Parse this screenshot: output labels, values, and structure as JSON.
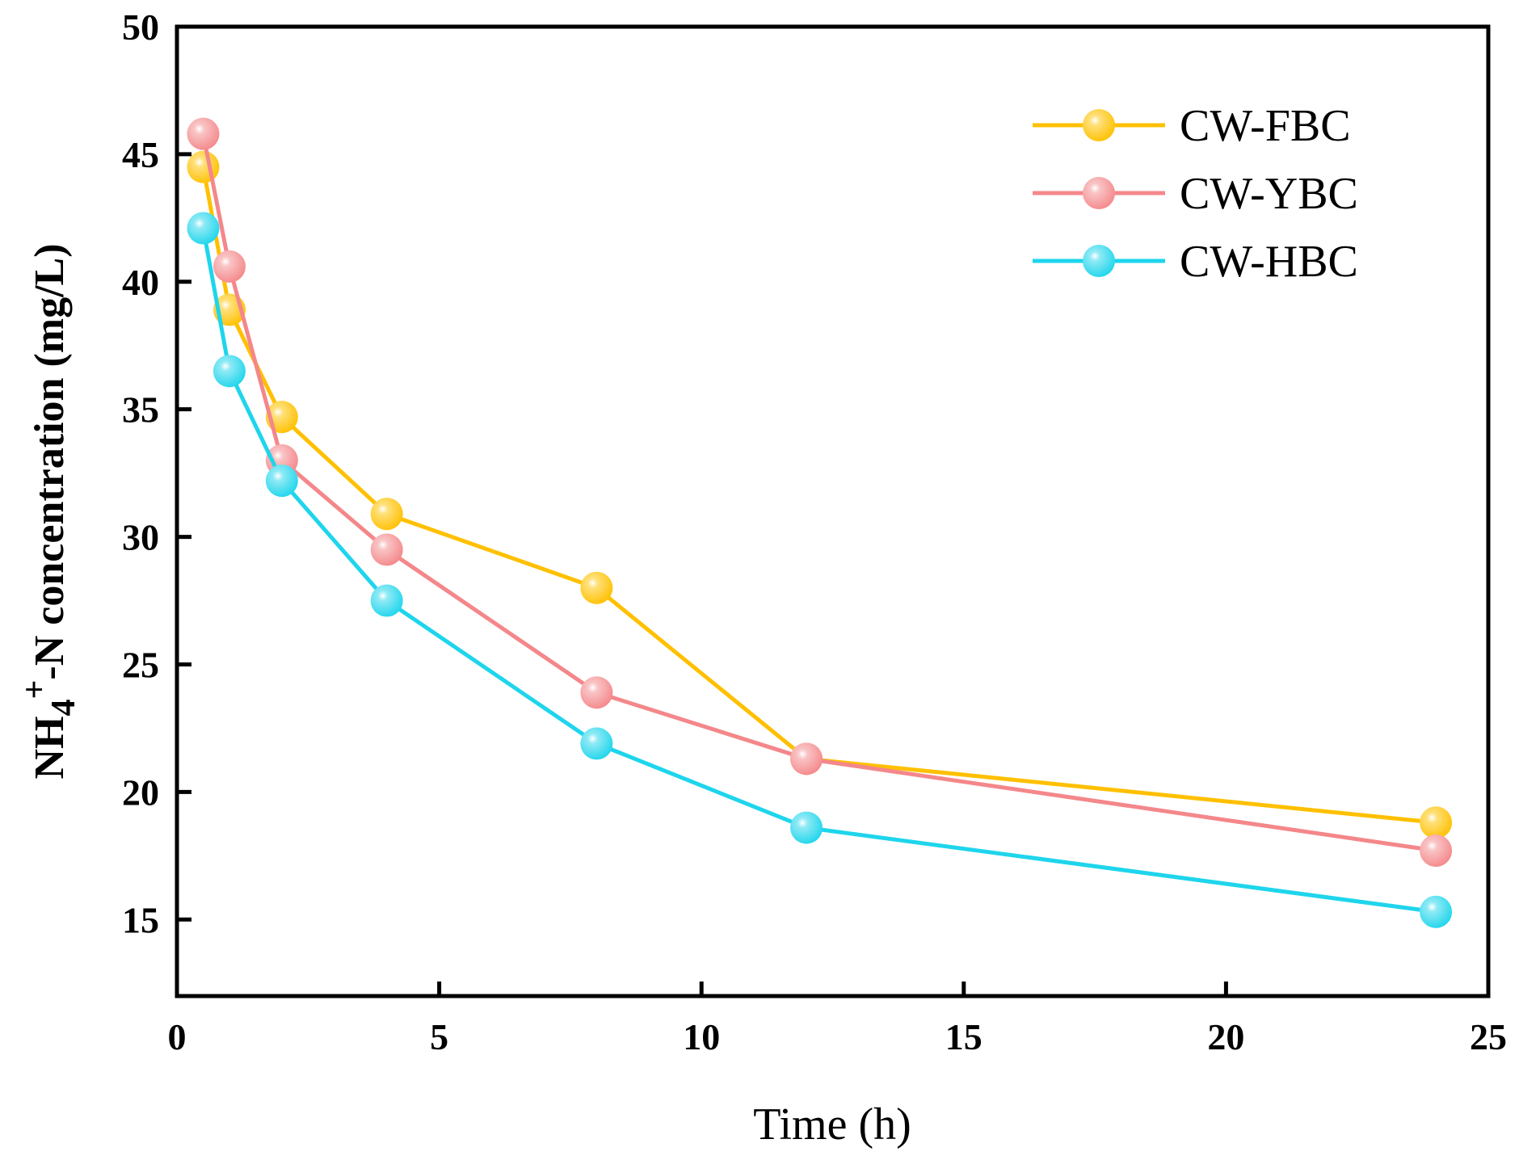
{
  "chart_data": {
    "type": "line",
    "title": "",
    "xlabel": "Time (h)",
    "ylabel": "NH4+-N concentration (mg/L)",
    "ylabel_parts": {
      "main": "NH",
      "sub": "4",
      "sup": "+",
      "rest": "-N concentration (mg/L)"
    },
    "xlim": [
      0,
      25
    ],
    "ylim": [
      12,
      50
    ],
    "xticks": [
      0,
      5,
      10,
      15,
      20,
      25
    ],
    "yticks": [
      15,
      20,
      25,
      30,
      35,
      40,
      45,
      50
    ],
    "grid": false,
    "legend_position": "top-right",
    "x": [
      0.5,
      1,
      2,
      4,
      8,
      12,
      24
    ],
    "series": [
      {
        "name": "CW-FBC",
        "color": "#FFC000",
        "values": [
          44.5,
          38.9,
          34.7,
          30.9,
          28.0,
          21.3,
          18.8
        ]
      },
      {
        "name": "CW-YBC",
        "color": "#F4878A",
        "values": [
          45.8,
          40.6,
          33.0,
          29.5,
          23.9,
          21.3,
          17.7
        ]
      },
      {
        "name": "CW-HBC",
        "color": "#1ED5EC",
        "values": [
          42.1,
          36.5,
          32.2,
          27.5,
          21.9,
          18.6,
          15.3
        ]
      }
    ]
  }
}
